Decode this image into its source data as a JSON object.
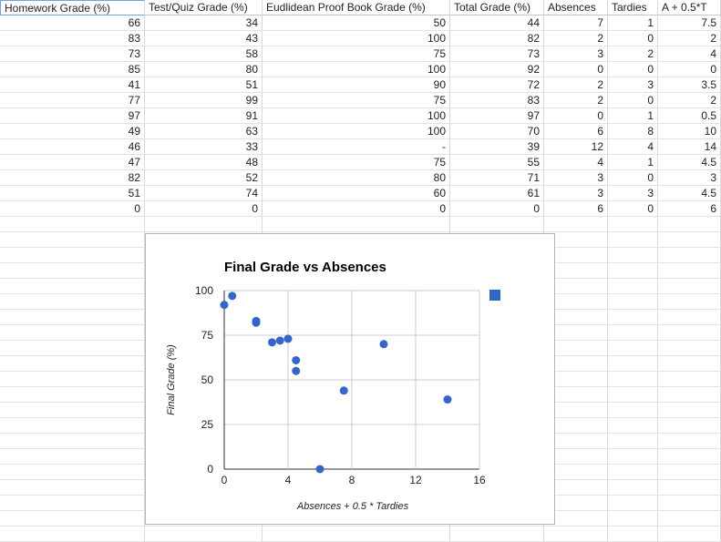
{
  "sheet": {
    "columns": [
      {
        "label": "Homework Grade (%)",
        "key": "homework"
      },
      {
        "label": "Test/Quiz Grade (%)",
        "key": "test"
      },
      {
        "label": "Eudlidean Proof Book Grade (%)",
        "key": "proof"
      },
      {
        "label": "Total Grade (%)",
        "key": "total"
      },
      {
        "label": "Absences",
        "key": "absences"
      },
      {
        "label": "Tardies",
        "key": "tardies"
      },
      {
        "label": "A + 0.5*T",
        "key": "a_half_t"
      }
    ],
    "rows": [
      [
        "66",
        "34",
        "50",
        "44",
        "7",
        "1",
        "7.5"
      ],
      [
        "83",
        "43",
        "100",
        "82",
        "2",
        "0",
        "2"
      ],
      [
        "73",
        "58",
        "75",
        "73",
        "3",
        "2",
        "4"
      ],
      [
        "85",
        "80",
        "100",
        "92",
        "0",
        "0",
        "0"
      ],
      [
        "41",
        "51",
        "90",
        "72",
        "2",
        "3",
        "3.5"
      ],
      [
        "77",
        "99",
        "75",
        "83",
        "2",
        "0",
        "2"
      ],
      [
        "97",
        "91",
        "100",
        "97",
        "0",
        "1",
        "0.5"
      ],
      [
        "49",
        "63",
        "100",
        "70",
        "6",
        "8",
        "10"
      ],
      [
        "46",
        "33",
        "-",
        "39",
        "12",
        "4",
        "14"
      ],
      [
        "47",
        "48",
        "75",
        "55",
        "4",
        "1",
        "4.5"
      ],
      [
        "82",
        "52",
        "80",
        "71",
        "3",
        "0",
        "3"
      ],
      [
        "51",
        "74",
        "60",
        "61",
        "3",
        "3",
        "4.5"
      ],
      [
        "0",
        "0",
        "0",
        "0",
        "6",
        "0",
        "6"
      ]
    ]
  },
  "chart_data": {
    "type": "scatter",
    "title": "Final Grade vs Absences",
    "xlabel": "Absences + 0.5 * Tardies",
    "ylabel": "Final Grade (%)",
    "xlim": [
      0,
      16
    ],
    "ylim": [
      0,
      100
    ],
    "xticks": [
      "0",
      "4",
      "8",
      "12",
      "16"
    ],
    "yticks": [
      "0",
      "25",
      "50",
      "75",
      "100"
    ],
    "series": [
      {
        "color": "#3366cc",
        "points": [
          {
            "x": 7.5,
            "y": 44
          },
          {
            "x": 2,
            "y": 82
          },
          {
            "x": 4,
            "y": 73
          },
          {
            "x": 0,
            "y": 92
          },
          {
            "x": 3.5,
            "y": 72
          },
          {
            "x": 2,
            "y": 83
          },
          {
            "x": 0.5,
            "y": 97
          },
          {
            "x": 10,
            "y": 70
          },
          {
            "x": 14,
            "y": 39
          },
          {
            "x": 4.5,
            "y": 55
          },
          {
            "x": 3,
            "y": 71
          },
          {
            "x": 4.5,
            "y": 61
          },
          {
            "x": 6,
            "y": 0
          }
        ]
      }
    ],
    "legend_marker_color": "#3366cc",
    "legend_position": "top-right",
    "grid": true
  }
}
